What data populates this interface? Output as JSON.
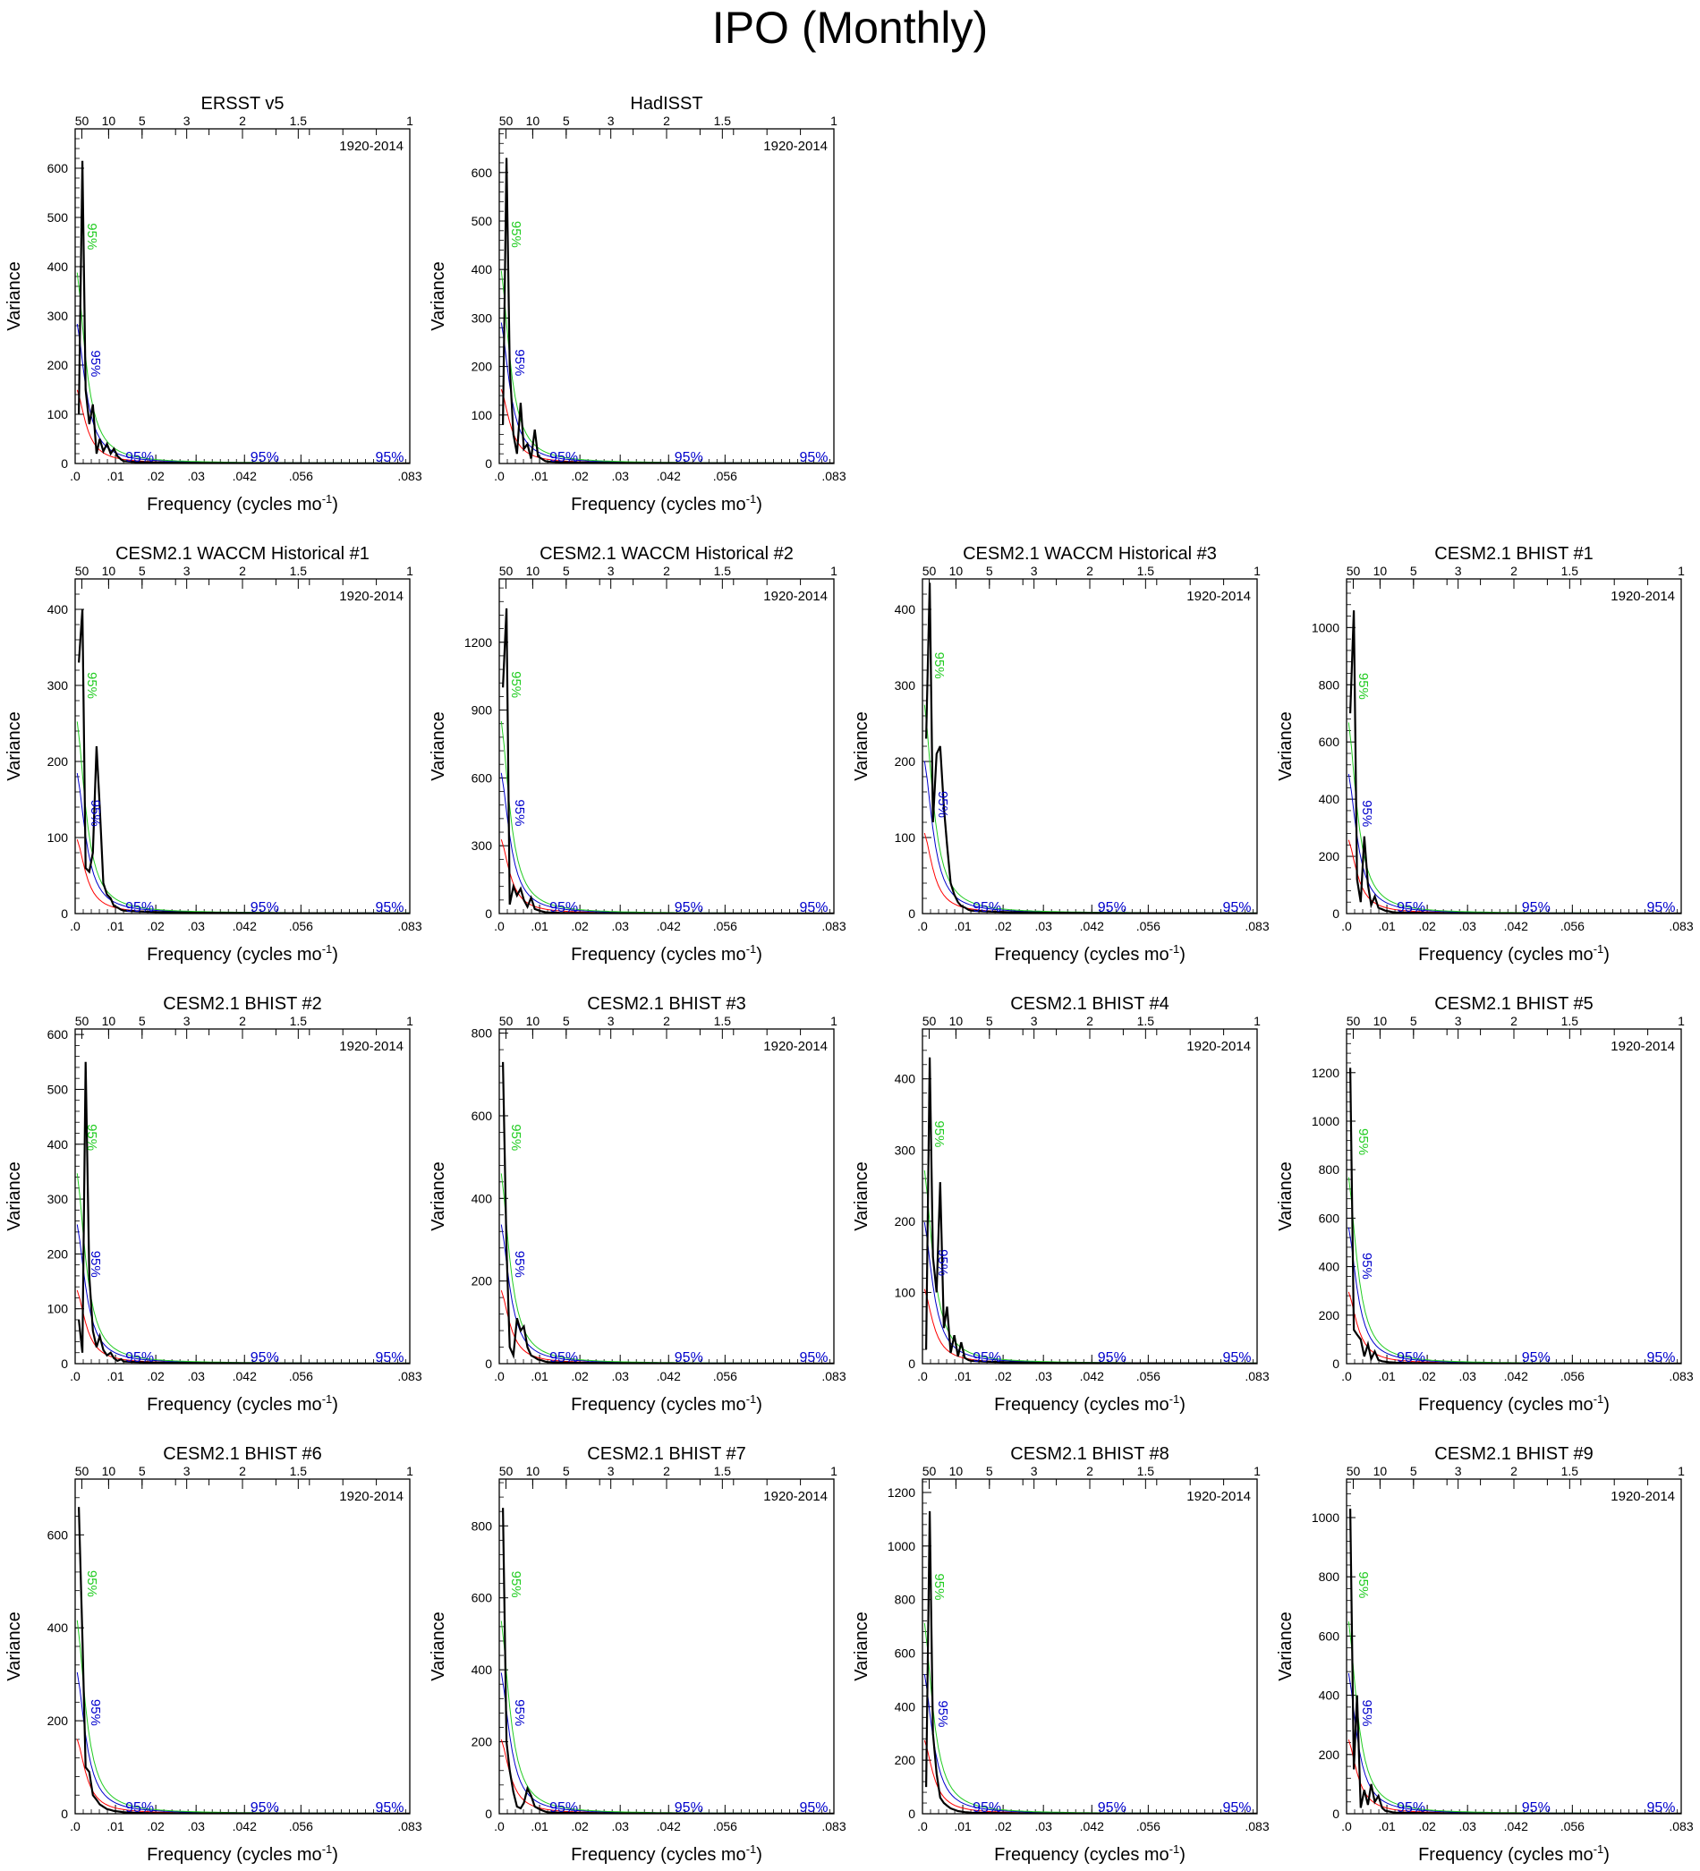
{
  "figure_title": "IPO (Monthly)",
  "colors": {
    "spectrum": "#000000",
    "red_noise": "#ff0000",
    "conf_blue": "#0000cc",
    "conf_green": "#22cc22"
  },
  "shared_axes": {
    "xlabel": "Frequency (cycles mo",
    "xlabel_superscript": "-1",
    "xlabel_close": ")",
    "ylabel": "Variance",
    "x_ticks": [
      ".0",
      ".01",
      ".02",
      ".03",
      ".042",
      ".056",
      ".083"
    ],
    "period_ticks": [
      "50",
      "10",
      "5",
      "3",
      "2",
      "1.5",
      "1"
    ],
    "period_label_at_2": "2",
    "conf_label": "95%"
  },
  "chart_data": [
    {
      "type": "line",
      "title": "ERSST v5",
      "annotation": "1920-2014",
      "xlim": [
        0,
        0.083
      ],
      "ylim": [
        0,
        680
      ],
      "yticks": [
        0,
        100,
        200,
        300,
        400,
        500,
        600
      ],
      "series": [
        {
          "x": [
            0.0009,
            0.0018,
            0.0026,
            0.0035,
            0.0044,
            0.0053,
            0.0061,
            0.007,
            0.0079,
            0.0088,
            0.0096,
            0.0105,
            0.0114,
            0.012,
            0.015,
            0.02,
            0.03,
            0.05,
            0.083
          ],
          "y": [
            100,
            615,
            150,
            80,
            120,
            20,
            50,
            25,
            40,
            20,
            30,
            15,
            8,
            5,
            3,
            2,
            1,
            0.5,
            0.2
          ]
        }
      ]
    },
    {
      "type": "line",
      "title": "HadISST",
      "annotation": "1920-2014",
      "xlim": [
        0,
        0.083
      ],
      "ylim": [
        0,
        690
      ],
      "yticks": [
        0,
        100,
        200,
        300,
        400,
        500,
        600
      ],
      "series": [
        {
          "x": [
            0.0009,
            0.0018,
            0.0026,
            0.0035,
            0.0044,
            0.0053,
            0.0061,
            0.007,
            0.0079,
            0.0088,
            0.0096,
            0.0105,
            0.0114,
            0.012,
            0.015,
            0.02,
            0.03,
            0.05,
            0.083
          ],
          "y": [
            80,
            630,
            200,
            60,
            20,
            125,
            30,
            40,
            10,
            70,
            15,
            10,
            5,
            4,
            3,
            2,
            1,
            0.5,
            0.2
          ]
        }
      ]
    },
    {
      "type": "line",
      "title": "CESM2.1 WACCM Historical #1",
      "annotation": "1920-2014",
      "xlim": [
        0,
        0.083
      ],
      "ylim": [
        0,
        440
      ],
      "yticks": [
        0,
        100,
        200,
        300,
        400
      ],
      "series": [
        {
          "x": [
            0.0009,
            0.0018,
            0.0026,
            0.0035,
            0.0044,
            0.0053,
            0.0061,
            0.007,
            0.0079,
            0.0088,
            0.0096,
            0.0105,
            0.0114,
            0.012,
            0.015,
            0.02,
            0.03,
            0.05,
            0.083
          ],
          "y": [
            330,
            400,
            60,
            55,
            80,
            220,
            140,
            40,
            25,
            20,
            10,
            8,
            5,
            4,
            3,
            2,
            1,
            0.5,
            0.2
          ]
        }
      ]
    },
    {
      "type": "line",
      "title": "CESM2.1 WACCM Historical #2",
      "annotation": "1920-2014",
      "xlim": [
        0,
        0.083
      ],
      "ylim": [
        0,
        1480
      ],
      "yticks": [
        0,
        300,
        600,
        900,
        1200
      ],
      "series": [
        {
          "x": [
            0.0009,
            0.0018,
            0.0026,
            0.0035,
            0.0044,
            0.0053,
            0.0061,
            0.007,
            0.0079,
            0.0088,
            0.0096,
            0.0105,
            0.0114,
            0.012,
            0.015,
            0.02,
            0.03,
            0.05,
            0.083
          ],
          "y": [
            1000,
            1350,
            40,
            120,
            80,
            110,
            60,
            30,
            70,
            20,
            15,
            10,
            6,
            5,
            3,
            2,
            1,
            0.5,
            0.2
          ]
        }
      ]
    },
    {
      "type": "line",
      "title": "CESM2.1 WACCM Historical #3",
      "annotation": "1920-2014",
      "xlim": [
        0,
        0.083
      ],
      "ylim": [
        0,
        440
      ],
      "yticks": [
        0,
        100,
        200,
        300,
        400
      ],
      "series": [
        {
          "x": [
            0.0009,
            0.0018,
            0.0026,
            0.0035,
            0.0044,
            0.0053,
            0.0061,
            0.007,
            0.0079,
            0.0088,
            0.0096,
            0.0105,
            0.0114,
            0.012,
            0.015,
            0.02,
            0.03,
            0.05,
            0.083
          ],
          "y": [
            230,
            435,
            120,
            210,
            220,
            140,
            90,
            40,
            25,
            15,
            10,
            8,
            5,
            4,
            3,
            2,
            1,
            0.5,
            0.2
          ]
        }
      ]
    },
    {
      "type": "line",
      "title": "CESM2.1 BHIST #1",
      "annotation": "1920-2014",
      "xlim": [
        0,
        0.083
      ],
      "ylim": [
        0,
        1170
      ],
      "yticks": [
        0,
        200,
        400,
        600,
        800,
        1000
      ],
      "series": [
        {
          "x": [
            0.0009,
            0.0018,
            0.0026,
            0.0035,
            0.0044,
            0.0053,
            0.0061,
            0.007,
            0.0079,
            0.0088,
            0.0096,
            0.0105,
            0.0114,
            0.012,
            0.015,
            0.02,
            0.03,
            0.05,
            0.083
          ],
          "y": [
            700,
            1060,
            120,
            40,
            270,
            100,
            30,
            60,
            20,
            15,
            10,
            8,
            5,
            4,
            3,
            2,
            1,
            0.5,
            0.2
          ]
        }
      ]
    },
    {
      "type": "line",
      "title": "CESM2.1 BHIST #2",
      "annotation": "1920-2014",
      "xlim": [
        0,
        0.083
      ],
      "ylim": [
        0,
        610
      ],
      "yticks": [
        0,
        100,
        200,
        300,
        400,
        500,
        600
      ],
      "series": [
        {
          "x": [
            0.0009,
            0.0018,
            0.0026,
            0.0035,
            0.0044,
            0.0053,
            0.0061,
            0.007,
            0.0079,
            0.0088,
            0.0096,
            0.0105,
            0.0114,
            0.012,
            0.015,
            0.02,
            0.03,
            0.05,
            0.083
          ],
          "y": [
            80,
            20,
            550,
            160,
            60,
            30,
            50,
            25,
            15,
            20,
            10,
            5,
            8,
            4,
            3,
            2,
            1,
            0.5,
            0.2
          ]
        }
      ]
    },
    {
      "type": "line",
      "title": "CESM2.1 BHIST #3",
      "annotation": "1920-2014",
      "xlim": [
        0,
        0.083
      ],
      "ylim": [
        0,
        810
      ],
      "yticks": [
        0,
        200,
        400,
        600,
        800
      ],
      "series": [
        {
          "x": [
            0.0009,
            0.0018,
            0.0026,
            0.0035,
            0.0044,
            0.0053,
            0.0061,
            0.007,
            0.0079,
            0.0088,
            0.0096,
            0.0105,
            0.0114,
            0.012,
            0.015,
            0.02,
            0.03,
            0.05,
            0.083
          ],
          "y": [
            730,
            280,
            40,
            20,
            110,
            80,
            90,
            40,
            20,
            15,
            10,
            8,
            5,
            4,
            3,
            2,
            1,
            0.5,
            0.2
          ]
        }
      ]
    },
    {
      "type": "line",
      "title": "CESM2.1 BHIST #4",
      "annotation": "1920-2014",
      "xlim": [
        0,
        0.083
      ],
      "ylim": [
        0,
        470
      ],
      "yticks": [
        0,
        100,
        200,
        300,
        400
      ],
      "series": [
        {
          "x": [
            0.0009,
            0.0018,
            0.0026,
            0.0035,
            0.0044,
            0.0053,
            0.0061,
            0.007,
            0.0079,
            0.0088,
            0.0096,
            0.0105,
            0.0114,
            0.012,
            0.015,
            0.02,
            0.03,
            0.05,
            0.083
          ],
          "y": [
            20,
            430,
            150,
            100,
            255,
            50,
            80,
            15,
            40,
            10,
            30,
            8,
            5,
            4,
            3,
            2,
            1,
            0.5,
            0.2
          ]
        }
      ]
    },
    {
      "type": "line",
      "title": "CESM2.1 BHIST #5",
      "annotation": "1920-2014",
      "xlim": [
        0,
        0.083
      ],
      "ylim": [
        0,
        1380
      ],
      "yticks": [
        0,
        200,
        400,
        600,
        800,
        1000,
        1200
      ],
      "series": [
        {
          "x": [
            0.0009,
            0.0018,
            0.0026,
            0.0035,
            0.0044,
            0.0053,
            0.0061,
            0.007,
            0.0079,
            0.0088,
            0.0096,
            0.0105,
            0.0114,
            0.012,
            0.015,
            0.02,
            0.03,
            0.05,
            0.083
          ],
          "y": [
            1220,
            140,
            120,
            100,
            30,
            80,
            20,
            50,
            15,
            10,
            8,
            6,
            5,
            4,
            3,
            2,
            1,
            0.5,
            0.2
          ]
        }
      ]
    },
    {
      "type": "line",
      "title": "CESM2.1 BHIST #6",
      "annotation": "1920-2014",
      "xlim": [
        0,
        0.083
      ],
      "ylim": [
        0,
        720
      ],
      "yticks": [
        0,
        200,
        400,
        600
      ],
      "series": [
        {
          "x": [
            0.0009,
            0.0018,
            0.0026,
            0.0035,
            0.0044,
            0.0053,
            0.0061,
            0.007,
            0.0079,
            0.0088,
            0.0096,
            0.0105,
            0.0114,
            0.012,
            0.015,
            0.02,
            0.03,
            0.05,
            0.083
          ],
          "y": [
            660,
            380,
            100,
            90,
            40,
            30,
            20,
            15,
            10,
            8,
            6,
            5,
            4,
            3,
            2,
            1,
            0.8,
            0.5,
            0.2
          ]
        }
      ]
    },
    {
      "type": "line",
      "title": "CESM2.1 BHIST #7",
      "annotation": "1920-2014",
      "xlim": [
        0,
        0.083
      ],
      "ylim": [
        0,
        930
      ],
      "yticks": [
        0,
        200,
        400,
        600,
        800
      ],
      "series": [
        {
          "x": [
            0.0009,
            0.0018,
            0.0026,
            0.0035,
            0.0044,
            0.0053,
            0.0061,
            0.007,
            0.0079,
            0.0088,
            0.0096,
            0.0105,
            0.0114,
            0.012,
            0.015,
            0.02,
            0.03,
            0.05,
            0.083
          ],
          "y": [
            850,
            200,
            120,
            60,
            20,
            15,
            30,
            70,
            50,
            20,
            15,
            10,
            6,
            4,
            3,
            2,
            1,
            0.5,
            0.2
          ]
        }
      ]
    },
    {
      "type": "line",
      "title": "CESM2.1 BHIST #8",
      "annotation": "1920-2014",
      "xlim": [
        0,
        0.083
      ],
      "ylim": [
        0,
        1250
      ],
      "yticks": [
        0,
        200,
        400,
        600,
        800,
        1000,
        1200
      ],
      "series": [
        {
          "x": [
            0.0009,
            0.0018,
            0.0026,
            0.0035,
            0.0044,
            0.0053,
            0.0061,
            0.007,
            0.0079,
            0.0088,
            0.0096,
            0.0105,
            0.0114,
            0.012,
            0.015,
            0.02,
            0.03,
            0.05,
            0.083
          ],
          "y": [
            100,
            1130,
            300,
            150,
            60,
            40,
            30,
            20,
            15,
            10,
            8,
            6,
            5,
            4,
            3,
            2,
            1,
            0.5,
            0.2
          ]
        }
      ]
    },
    {
      "type": "line",
      "title": "CESM2.1 BHIST #9",
      "annotation": "1920-2014",
      "xlim": [
        0,
        0.083
      ],
      "ylim": [
        0,
        1130
      ],
      "yticks": [
        0,
        200,
        400,
        600,
        800,
        1000
      ],
      "series": [
        {
          "x": [
            0.0009,
            0.0018,
            0.0026,
            0.0035,
            0.0044,
            0.0053,
            0.0061,
            0.007,
            0.0079,
            0.0088,
            0.0096,
            0.0105,
            0.0114,
            0.012,
            0.015,
            0.02,
            0.03,
            0.05,
            0.083
          ],
          "y": [
            1030,
            150,
            400,
            20,
            80,
            30,
            100,
            40,
            60,
            20,
            10,
            8,
            5,
            4,
            3,
            2,
            1,
            0.5,
            0.2
          ]
        }
      ]
    }
  ]
}
